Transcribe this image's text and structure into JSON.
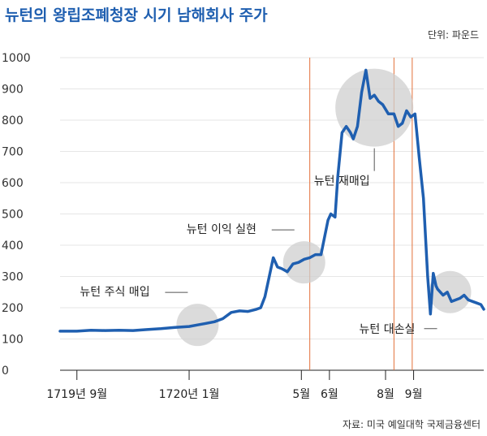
{
  "chart_data": {
    "type": "line",
    "title": "뉴턴의 왕립조폐청장 시기 남해회사 주가",
    "unit_label": "단위: 파운드",
    "source": "자료: 미국 예일대학 국제금융센터",
    "ylim": [
      0,
      1000
    ],
    "yticks": [
      0,
      100,
      200,
      300,
      400,
      500,
      600,
      700,
      800,
      900,
      1000
    ],
    "grid": true,
    "xticks": [
      {
        "label": "1719년 9월",
        "t": 0
      },
      {
        "label": "1720년 1월",
        "t": 4
      },
      {
        "label": "5월",
        "t": 8
      },
      {
        "label": "6월",
        "t": 9
      },
      {
        "label": "8월",
        "t": 11
      },
      {
        "label": "9월",
        "t": 12
      }
    ],
    "event_lines": [
      8.3,
      11.3,
      11.95
    ],
    "series": [
      {
        "color": "#1f5fb0",
        "x": [
          -0.6,
          0.0,
          0.5,
          1.0,
          1.5,
          2.0,
          2.5,
          3.0,
          3.5,
          4.0,
          4.3,
          4.6,
          4.9,
          5.2,
          5.5,
          5.8,
          6.1,
          6.4,
          6.55,
          6.7,
          7.0,
          7.15,
          7.3,
          7.5,
          7.7,
          7.9,
          8.1,
          8.3,
          8.5,
          8.7,
          8.95,
          9.05,
          9.2,
          9.3,
          9.45,
          9.6,
          9.75,
          9.85,
          10.0,
          10.15,
          10.3,
          10.45,
          10.6,
          10.75,
          10.9,
          11.1,
          11.3,
          11.45,
          11.6,
          11.75,
          11.9,
          12.05,
          12.2,
          12.35,
          12.5,
          12.6,
          12.7,
          12.8,
          12.85,
          12.9,
          13.05,
          13.2,
          13.35,
          13.5,
          13.65,
          13.8,
          13.95,
          14.1,
          14.25,
          14.4,
          14.5
        ],
        "values": [
          125,
          125,
          128,
          127,
          128,
          127,
          130,
          133,
          137,
          140,
          145,
          150,
          155,
          165,
          185,
          190,
          188,
          195,
          200,
          235,
          360,
          330,
          325,
          315,
          340,
          345,
          355,
          360,
          370,
          370,
          480,
          500,
          490,
          620,
          760,
          780,
          760,
          740,
          780,
          890,
          960,
          870,
          880,
          860,
          850,
          820,
          820,
          780,
          790,
          830,
          810,
          820,
          680,
          550,
          300,
          180,
          310,
          270,
          260,
          255,
          240,
          250,
          220,
          225,
          230,
          240,
          225,
          220,
          215,
          210,
          195
        ]
      }
    ],
    "annotations": [
      {
        "text": "뉴턴 주식 매입",
        "cx": 4.3,
        "cy": 145
      },
      {
        "text": "뉴턴 이익 실현",
        "cx": 8.1,
        "cy": 345
      },
      {
        "text": "뉴턴 재매입",
        "cx": 10.6,
        "cy": 840
      },
      {
        "text": "뉴턴 대손실",
        "cx": 13.3,
        "cy": 250
      }
    ]
  }
}
